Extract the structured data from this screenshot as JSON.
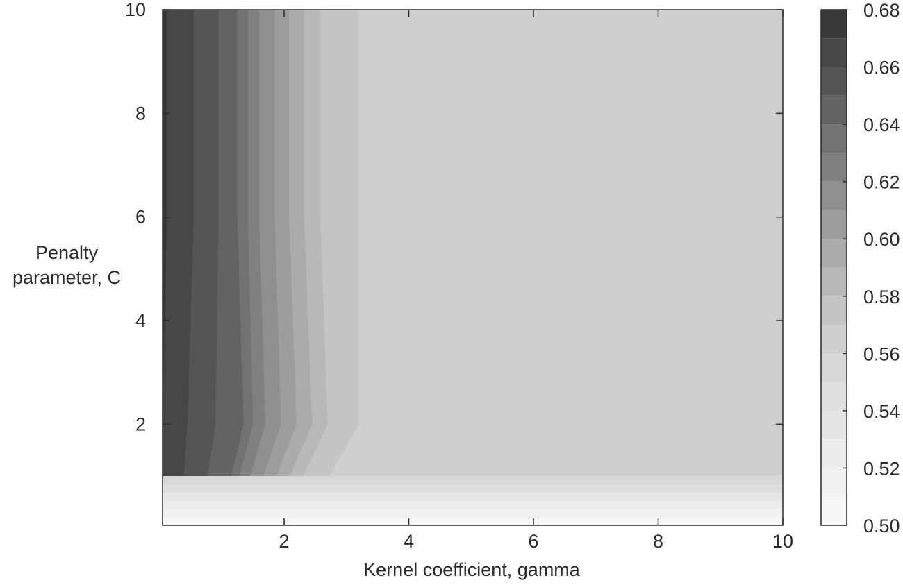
{
  "chart_data": {
    "type": "heatmap",
    "subtype": "filled-contour",
    "xlabel": "Kernel coefficient, gamma",
    "ylabel_lines": [
      "Penalty",
      "parameter, C"
    ],
    "xlim": [
      0.05,
      10
    ],
    "ylim": [
      0.05,
      10
    ],
    "x_ticks": [
      2,
      4,
      6,
      8,
      10
    ],
    "y_ticks": [
      2,
      4,
      6,
      8,
      10
    ],
    "z_range": [
      0.5,
      0.68
    ],
    "colorbar_ticks": [
      "0.50",
      "0.52",
      "0.54",
      "0.56",
      "0.58",
      "0.60",
      "0.62",
      "0.64",
      "0.66",
      "0.68"
    ],
    "contour_levels": [
      0.5,
      0.51,
      0.52,
      0.53,
      0.54,
      0.55,
      0.56,
      0.57,
      0.58,
      0.59,
      0.6,
      0.61,
      0.62,
      0.63,
      0.64,
      0.65,
      0.66,
      0.67,
      0.68
    ],
    "level_colors": [
      "#f6f6f6",
      "#f1f1f1",
      "#ececec",
      "#e6e6e6",
      "#dedede",
      "#d8d8d8",
      "#cfcfcf",
      "#c4c4c4",
      "#b8b8b8",
      "#ababab",
      "#9d9d9d",
      "#8f8f8f",
      "#808080",
      "#727272",
      "#636363",
      "#555555",
      "#474747",
      "#393939"
    ],
    "contours_vertical": [
      {
        "level": 0.67,
        "x_at_top": 0.12,
        "x_at_C2": 0.05
      },
      {
        "level": 0.66,
        "x_at_top": 0.55,
        "x_at_C2": 0.45
      },
      {
        "level": 0.65,
        "x_at_top": 0.95,
        "x_at_C2": 0.9
      },
      {
        "level": 0.64,
        "x_at_top": 1.25,
        "x_at_C2": 1.35
      },
      {
        "level": 0.63,
        "x_at_top": 1.42,
        "x_at_C2": 1.5
      },
      {
        "level": 0.62,
        "x_at_top": 1.6,
        "x_at_C2": 1.7
      },
      {
        "level": 0.61,
        "x_at_top": 1.85,
        "x_at_C2": 1.95
      },
      {
        "level": 0.6,
        "x_at_top": 2.08,
        "x_at_C2": 2.2
      },
      {
        "level": 0.59,
        "x_at_top": 2.32,
        "x_at_C2": 2.45
      },
      {
        "level": 0.58,
        "x_at_top": 2.58,
        "x_at_C2": 2.7
      },
      {
        "level": 0.57,
        "x_at_top": 3.2,
        "x_at_C2": 3.2
      }
    ],
    "plateau_value": 0.565,
    "low_C_boundary": 1.0
  }
}
